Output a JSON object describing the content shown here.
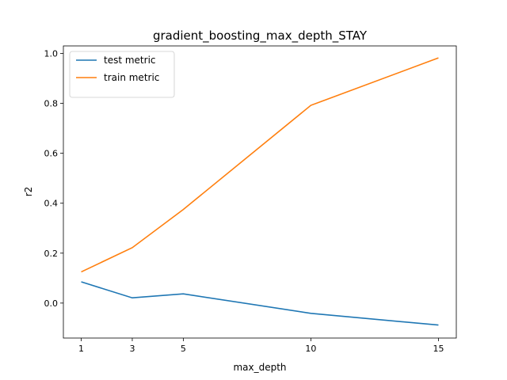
{
  "chart_data": {
    "type": "line",
    "title": "gradient_boosting_max_depth_STAY",
    "xlabel": "max_depth",
    "ylabel": "r2",
    "x": [
      1,
      3,
      5,
      10,
      15
    ],
    "xticks": [
      "1",
      "3",
      "5",
      "10",
      "15"
    ],
    "yticks": [
      "0.0",
      "0.2",
      "0.4",
      "0.6",
      "0.8",
      "1.0"
    ],
    "xlim": [
      0.3,
      15.7
    ],
    "ylim": [
      -0.14,
      1.03
    ],
    "grid": false,
    "legend_position": "top-left",
    "series": [
      {
        "name": "test metric",
        "color": "#1f77b4",
        "values": [
          0.085,
          0.021,
          0.037,
          -0.041,
          -0.088
        ]
      },
      {
        "name": "train metric",
        "color": "#ff7f0e",
        "values": [
          0.125,
          0.222,
          0.375,
          0.792,
          0.982
        ]
      }
    ]
  }
}
